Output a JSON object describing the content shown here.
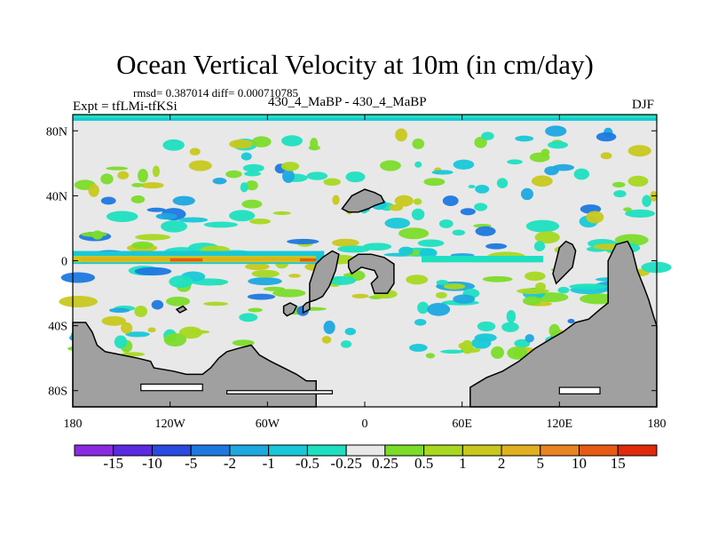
{
  "chart_data": {
    "type": "heatmap",
    "title": "Ocean Vertical Velocity at 10m (in cm/day)",
    "stats_text": "rmsd= 0.387014 diff= 0.000710785",
    "experiment_label": "Expt = tfLMi-tfKSi",
    "cases_label": "430_4_MaBP - 430_4_MaBP",
    "season": "DJF",
    "xlim": [
      -180,
      180
    ],
    "ylim": [
      -90,
      90
    ],
    "x_ticks": [
      {
        "value": -180,
        "label": "180"
      },
      {
        "value": -120,
        "label": "120W"
      },
      {
        "value": -60,
        "label": "60W"
      },
      {
        "value": 0,
        "label": "0"
      },
      {
        "value": 60,
        "label": "60E"
      },
      {
        "value": 120,
        "label": "120E"
      },
      {
        "value": 180,
        "label": "180"
      }
    ],
    "y_ticks": [
      {
        "value": 80,
        "label": "80N"
      },
      {
        "value": 40,
        "label": "40N"
      },
      {
        "value": 0,
        "label": "0"
      },
      {
        "value": -40,
        "label": "40S"
      },
      {
        "value": -80,
        "label": "80S"
      }
    ],
    "colorbar": {
      "levels": [
        "-15",
        "-10",
        "-5",
        "-2",
        "-1",
        "-0.5",
        "-0.25",
        "0.25",
        "0.5",
        "1",
        "2",
        "5",
        "10",
        "15"
      ],
      "colors": [
        "#8a2be2",
        "#5a2be2",
        "#2a4ae0",
        "#1e78e0",
        "#1ea8e0",
        "#18c8d8",
        "#1ee0c0",
        "#e8e8e8",
        "#7cdc2a",
        "#a8d820",
        "#c8c81e",
        "#e0b020",
        "#e88420",
        "#e85a14",
        "#e02a0a"
      ]
    },
    "land_color": "#a0a0a0",
    "background_color": "#e8e8e8"
  }
}
